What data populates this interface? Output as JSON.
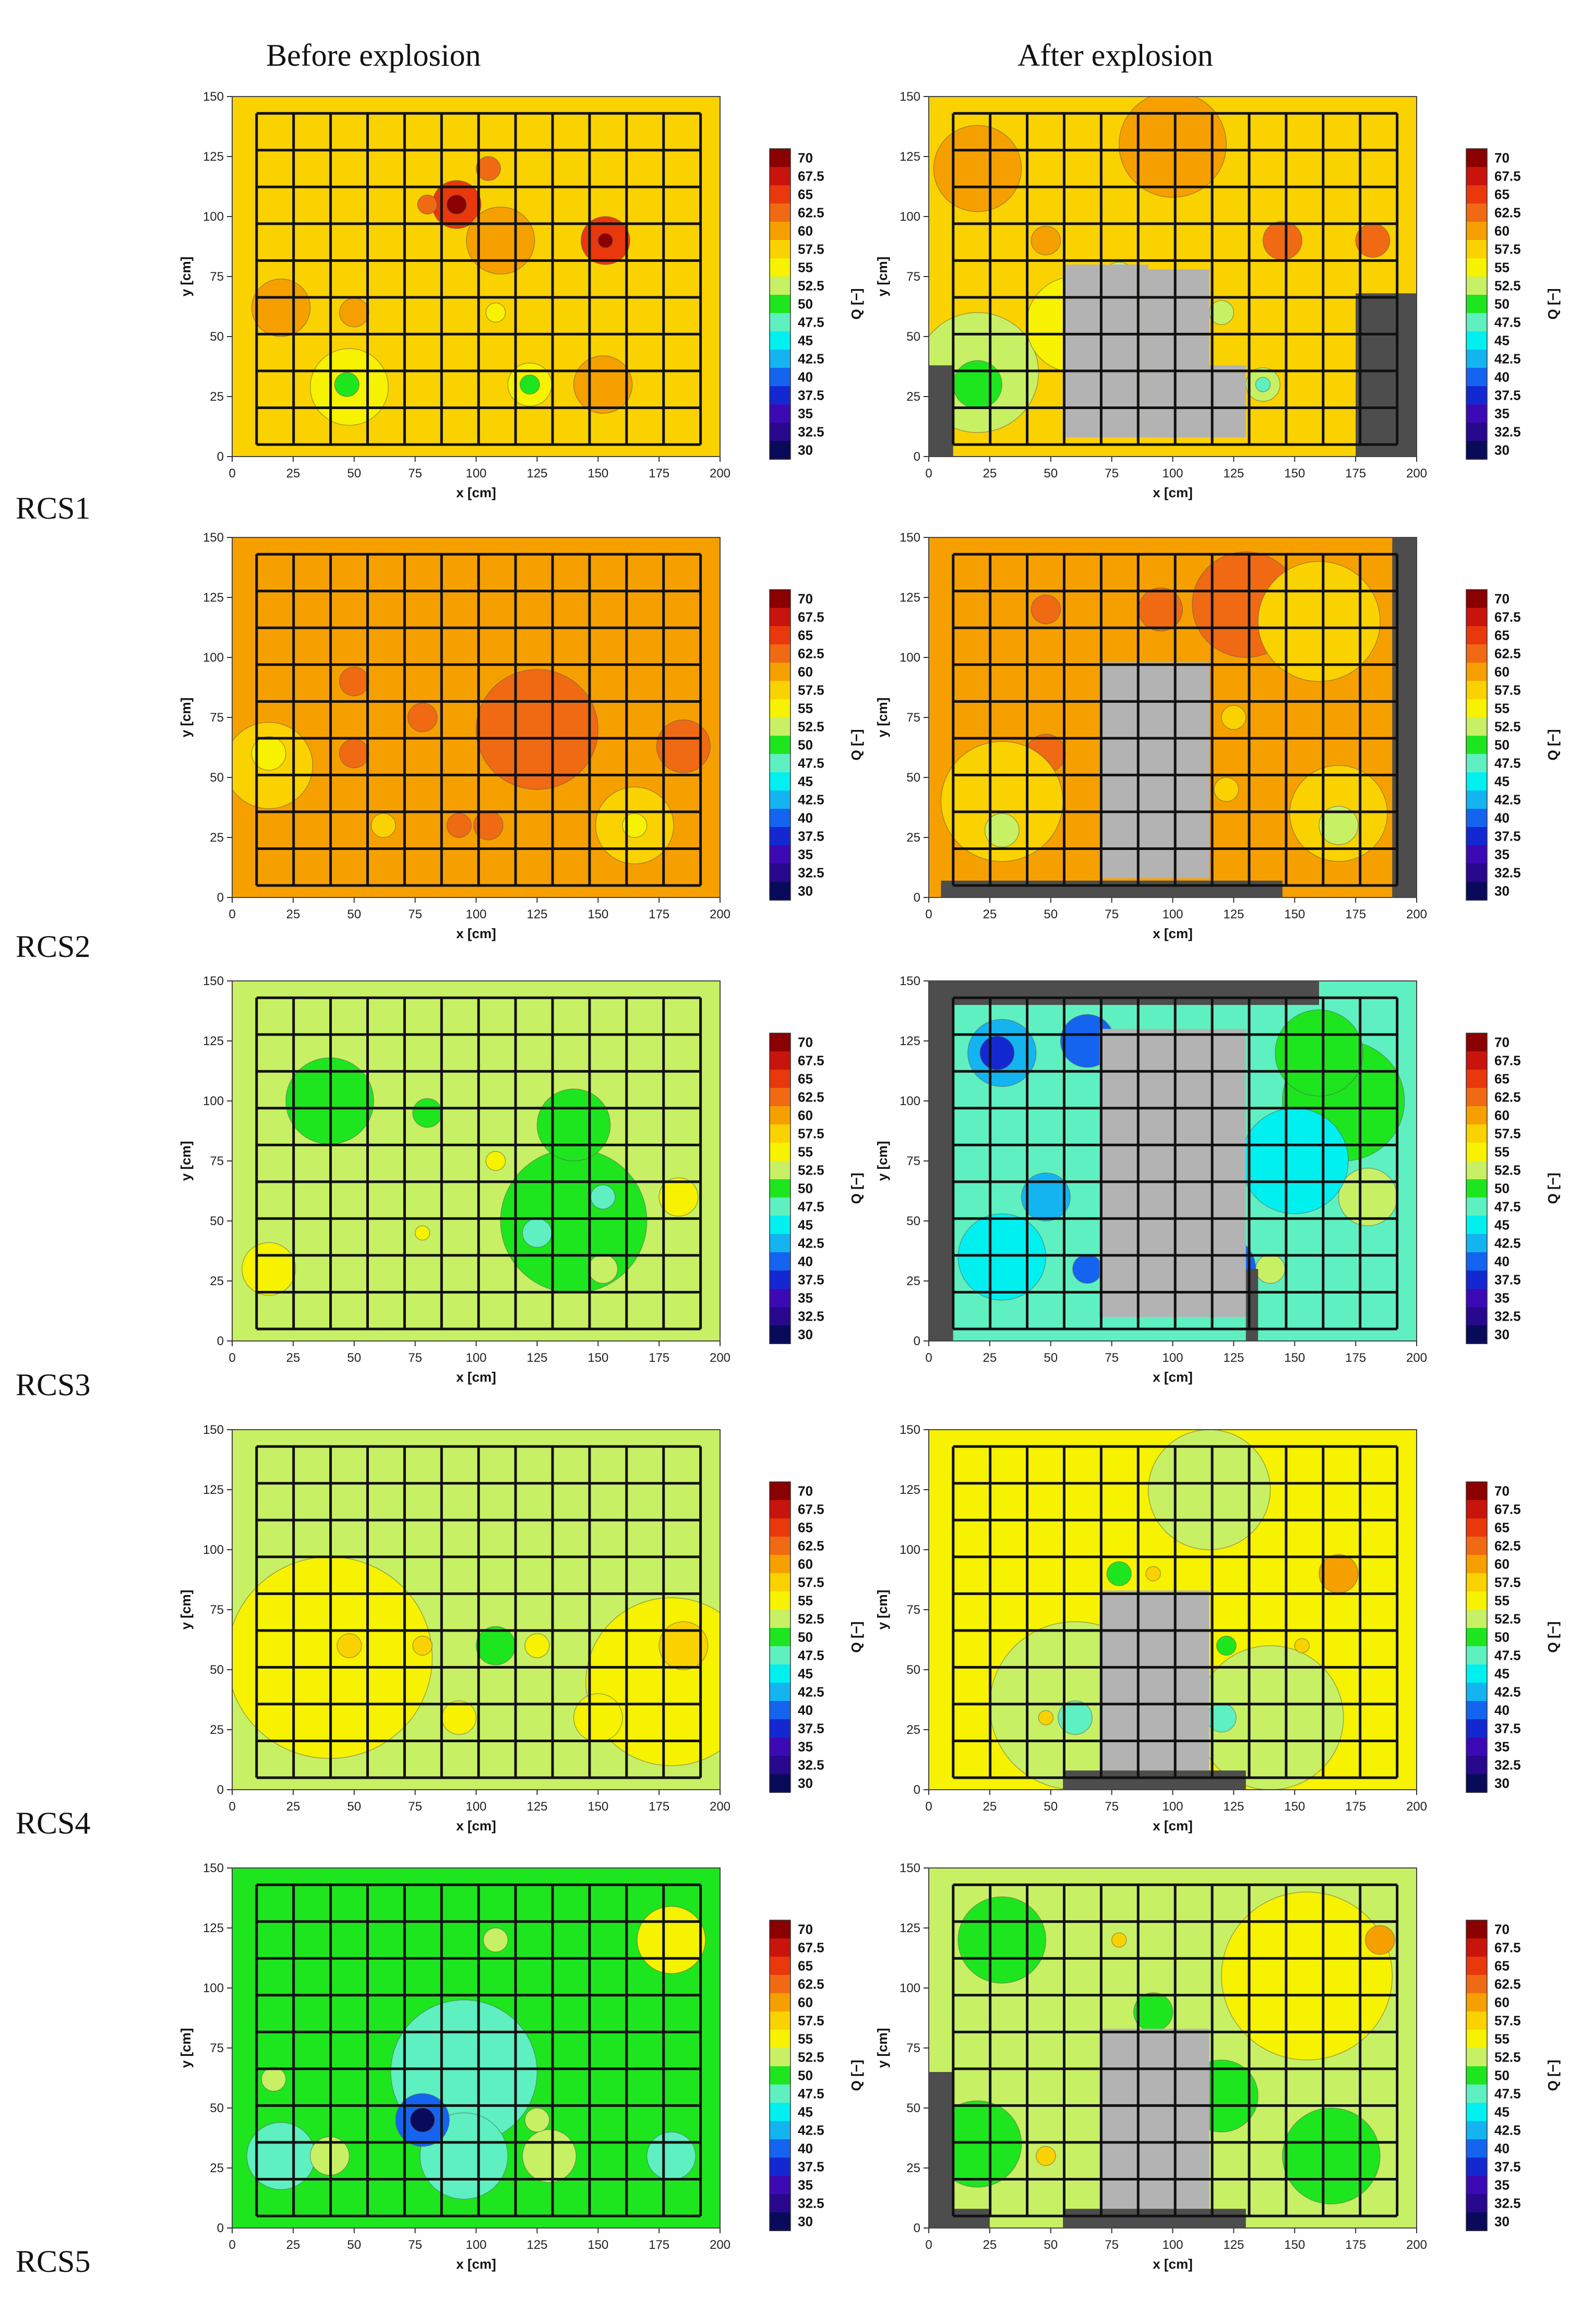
{
  "column_titles": {
    "before": "Before explosion",
    "after": "After explosion"
  },
  "row_labels": [
    "RCS1",
    "RCS2",
    "RCS3",
    "RCS4",
    "RCS5"
  ],
  "colors": {
    "grid_lines": "#111111",
    "removed_area": "#b3b3b3",
    "damaged_area": "#4d4d4d"
  },
  "chart_data": {
    "type": "heatmap",
    "description_level": "contour map of rebound index Q on a reinforced concrete slab grid",
    "axes": {
      "xlabel": "x [cm]",
      "ylabel": "y [cm]",
      "xlim": [
        0,
        200
      ],
      "ylim": [
        0,
        150
      ],
      "x_ticks": [
        0,
        25,
        50,
        75,
        100,
        125,
        150,
        175,
        200
      ],
      "y_ticks": [
        0,
        25,
        50,
        75,
        100,
        125,
        150
      ]
    },
    "colorbar": {
      "label": "Q [−]",
      "ticks": [
        "70",
        "67.5",
        "65",
        "62.5",
        "60",
        "57.5",
        "55",
        "52.5",
        "50",
        "47.5",
        "45",
        "42.5",
        "40",
        "37.5",
        "35",
        "32.5",
        "30"
      ],
      "colors": [
        "#8b0000",
        "#c8140c",
        "#e8380c",
        "#f06a14",
        "#f6a000",
        "#fad200",
        "#f6f200",
        "#c8f064",
        "#1ee61e",
        "#5ef0c0",
        "#00f0f0",
        "#14b4f0",
        "#1464f0",
        "#1428d2",
        "#3c0ab4",
        "#28088c",
        "#0a0a5a"
      ]
    },
    "panels": [
      {
        "id": "rcs1-before",
        "row": "RCS1",
        "state": "Before explosion",
        "background_q": 57.5,
        "blobs": [
          {
            "x": 20,
            "y": 62,
            "r": 12,
            "q": 60
          },
          {
            "x": 92,
            "y": 105,
            "r": 10,
            "q": 65
          },
          {
            "x": 92,
            "y": 105,
            "r": 4,
            "q": 70
          },
          {
            "x": 153,
            "y": 90,
            "r": 10,
            "q": 65
          },
          {
            "x": 153,
            "y": 90,
            "r": 3,
            "q": 70
          },
          {
            "x": 48,
            "y": 29,
            "r": 16,
            "q": 55
          },
          {
            "x": 122,
            "y": 30,
            "r": 9,
            "q": 55
          },
          {
            "x": 47,
            "y": 30,
            "r": 5,
            "q": 50
          },
          {
            "x": 122,
            "y": 30,
            "r": 4,
            "q": 50
          },
          {
            "x": 105,
            "y": 120,
            "r": 5,
            "q": 62.5
          },
          {
            "x": 80,
            "y": 105,
            "r": 4,
            "q": 62.5
          },
          {
            "x": 152,
            "y": 30,
            "r": 12,
            "q": 60
          },
          {
            "x": 110,
            "y": 90,
            "r": 14,
            "q": 60
          },
          {
            "x": 108,
            "y": 60,
            "r": 4,
            "q": 55
          },
          {
            "x": 50,
            "y": 60,
            "r": 6,
            "q": 60
          }
        ]
      },
      {
        "id": "rcs1-after",
        "row": "RCS1",
        "state": "After explosion",
        "background_q": 57.5,
        "blobs": [
          {
            "x": 20,
            "y": 120,
            "r": 18,
            "q": 60
          },
          {
            "x": 100,
            "y": 130,
            "r": 22,
            "q": 60
          },
          {
            "x": 145,
            "y": 90,
            "r": 8,
            "q": 62.5
          },
          {
            "x": 182,
            "y": 90,
            "r": 7,
            "q": 62.5
          },
          {
            "x": 20,
            "y": 35,
            "r": 25,
            "q": 52.5
          },
          {
            "x": 20,
            "y": 30,
            "r": 10,
            "q": 50
          },
          {
            "x": 78,
            "y": 75,
            "r": 6,
            "q": 52.5
          },
          {
            "x": 137,
            "y": 30,
            "r": 7,
            "q": 52.5
          },
          {
            "x": 137,
            "y": 30,
            "r": 3,
            "q": 47.5
          },
          {
            "x": 120,
            "y": 60,
            "r": 5,
            "q": 52.5
          },
          {
            "x": 60,
            "y": 55,
            "r": 20,
            "q": 55
          },
          {
            "x": 48,
            "y": 90,
            "r": 6,
            "q": 60
          }
        ],
        "removed": [
          [
            55,
            8,
            35,
            72
          ],
          [
            90,
            8,
            25,
            70
          ],
          [
            115,
            8,
            15,
            30
          ]
        ],
        "damaged": [
          [
            0,
            0,
            10,
            38
          ],
          [
            175,
            0,
            25,
            68
          ]
        ]
      },
      {
        "id": "rcs2-before",
        "row": "RCS2",
        "state": "Before explosion",
        "background_q": 60,
        "blobs": [
          {
            "x": 125,
            "y": 70,
            "r": 25,
            "q": 62.5
          },
          {
            "x": 185,
            "y": 63,
            "r": 11,
            "q": 62.5
          },
          {
            "x": 50,
            "y": 90,
            "r": 6,
            "q": 62.5
          },
          {
            "x": 50,
            "y": 60,
            "r": 6,
            "q": 62.5
          },
          {
            "x": 78,
            "y": 75,
            "r": 6,
            "q": 62.5
          },
          {
            "x": 93,
            "y": 30,
            "r": 5,
            "q": 62.5
          },
          {
            "x": 105,
            "y": 30,
            "r": 6,
            "q": 62.5
          },
          {
            "x": 15,
            "y": 55,
            "r": 18,
            "q": 57.5
          },
          {
            "x": 15,
            "y": 60,
            "r": 7,
            "q": 55
          },
          {
            "x": 165,
            "y": 30,
            "r": 16,
            "q": 57.5
          },
          {
            "x": 165,
            "y": 30,
            "r": 5,
            "q": 55
          },
          {
            "x": 62,
            "y": 30,
            "r": 5,
            "q": 57.5
          }
        ]
      },
      {
        "id": "rcs2-after",
        "row": "RCS2",
        "state": "After explosion",
        "background_q": 60,
        "blobs": [
          {
            "x": 130,
            "y": 122,
            "r": 22,
            "q": 62.5
          },
          {
            "x": 95,
            "y": 120,
            "r": 9,
            "q": 62.5
          },
          {
            "x": 48,
            "y": 120,
            "r": 6,
            "q": 62.5
          },
          {
            "x": 48,
            "y": 60,
            "r": 8,
            "q": 62.5
          },
          {
            "x": 30,
            "y": 40,
            "r": 25,
            "q": 57.5
          },
          {
            "x": 30,
            "y": 28,
            "r": 7,
            "q": 52.5
          },
          {
            "x": 168,
            "y": 35,
            "r": 20,
            "q": 57.5
          },
          {
            "x": 168,
            "y": 30,
            "r": 8,
            "q": 52.5
          },
          {
            "x": 160,
            "y": 115,
            "r": 25,
            "q": 57.5
          },
          {
            "x": 125,
            "y": 75,
            "r": 5,
            "q": 57.5
          },
          {
            "x": 122,
            "y": 45,
            "r": 5,
            "q": 57.5
          }
        ],
        "removed": [
          [
            70,
            8,
            45,
            90
          ]
        ],
        "damaged": [
          [
            5,
            0,
            140,
            7
          ],
          [
            190,
            0,
            10,
            150
          ]
        ]
      },
      {
        "id": "rcs3-before",
        "row": "RCS3",
        "state": "Before explosion",
        "background_q": 52.5,
        "blobs": [
          {
            "x": 40,
            "y": 100,
            "r": 18,
            "q": 50
          },
          {
            "x": 140,
            "y": 50,
            "r": 30,
            "q": 50
          },
          {
            "x": 140,
            "y": 90,
            "r": 15,
            "q": 50
          },
          {
            "x": 80,
            "y": 95,
            "r": 6,
            "q": 50
          },
          {
            "x": 125,
            "y": 45,
            "r": 6,
            "q": 47.5
          },
          {
            "x": 152,
            "y": 60,
            "r": 5,
            "q": 47.5
          },
          {
            "x": 15,
            "y": 30,
            "r": 11,
            "q": 55
          },
          {
            "x": 183,
            "y": 60,
            "r": 8,
            "q": 55
          },
          {
            "x": 152,
            "y": 30,
            "r": 6,
            "q": 52.5
          },
          {
            "x": 108,
            "y": 75,
            "r": 4,
            "q": 55
          },
          {
            "x": 78,
            "y": 45,
            "r": 3,
            "q": 55
          }
        ]
      },
      {
        "id": "rcs3-after",
        "row": "RCS3",
        "state": "After explosion",
        "background_q": 47.5,
        "blobs": [
          {
            "x": 30,
            "y": 120,
            "r": 14,
            "q": 42.5
          },
          {
            "x": 28,
            "y": 120,
            "r": 7,
            "q": 37.5
          },
          {
            "x": 65,
            "y": 125,
            "r": 11,
            "q": 40
          },
          {
            "x": 48,
            "y": 60,
            "r": 10,
            "q": 42.5
          },
          {
            "x": 65,
            "y": 30,
            "r": 6,
            "q": 40
          },
          {
            "x": 120,
            "y": 30,
            "r": 14,
            "q": 40
          },
          {
            "x": 120,
            "y": 30,
            "r": 6,
            "q": 32.5
          },
          {
            "x": 170,
            "y": 100,
            "r": 25,
            "q": 50
          },
          {
            "x": 180,
            "y": 60,
            "r": 12,
            "q": 52.5
          },
          {
            "x": 160,
            "y": 120,
            "r": 18,
            "q": 50
          },
          {
            "x": 140,
            "y": 30,
            "r": 6,
            "q": 52.5
          },
          {
            "x": 30,
            "y": 35,
            "r": 18,
            "q": 45
          },
          {
            "x": 150,
            "y": 75,
            "r": 22,
            "q": 45
          }
        ],
        "removed": [
          [
            70,
            10,
            60,
            120
          ]
        ],
        "damaged": [
          [
            0,
            0,
            10,
            150
          ],
          [
            0,
            140,
            160,
            10
          ],
          [
            130,
            0,
            5,
            30
          ]
        ]
      },
      {
        "id": "rcs4-before",
        "row": "RCS4",
        "state": "Before explosion",
        "background_q": 52.5,
        "blobs": [
          {
            "x": 40,
            "y": 55,
            "r": 42,
            "q": 55
          },
          {
            "x": 180,
            "y": 45,
            "r": 35,
            "q": 55
          },
          {
            "x": 185,
            "y": 60,
            "r": 10,
            "q": 57.5
          },
          {
            "x": 108,
            "y": 60,
            "r": 8,
            "q": 50
          },
          {
            "x": 48,
            "y": 60,
            "r": 5,
            "q": 57.5
          },
          {
            "x": 78,
            "y": 60,
            "r": 4,
            "q": 57.5
          },
          {
            "x": 125,
            "y": 60,
            "r": 5,
            "q": 55
          },
          {
            "x": 93,
            "y": 30,
            "r": 7,
            "q": 55
          },
          {
            "x": 150,
            "y": 30,
            "r": 10,
            "q": 55
          }
        ]
      },
      {
        "id": "rcs4-after",
        "row": "RCS4",
        "state": "After explosion",
        "background_q": 55,
        "blobs": [
          {
            "x": 115,
            "y": 125,
            "r": 25,
            "q": 52.5
          },
          {
            "x": 60,
            "y": 35,
            "r": 35,
            "q": 52.5
          },
          {
            "x": 140,
            "y": 30,
            "r": 30,
            "q": 52.5
          },
          {
            "x": 60,
            "y": 30,
            "r": 7,
            "q": 47.5
          },
          {
            "x": 120,
            "y": 30,
            "r": 6,
            "q": 47.5
          },
          {
            "x": 78,
            "y": 90,
            "r": 5,
            "q": 50
          },
          {
            "x": 168,
            "y": 90,
            "r": 8,
            "q": 60
          },
          {
            "x": 92,
            "y": 90,
            "r": 3,
            "q": 57.5
          },
          {
            "x": 122,
            "y": 60,
            "r": 4,
            "q": 50
          },
          {
            "x": 153,
            "y": 60,
            "r": 3,
            "q": 57.5
          },
          {
            "x": 48,
            "y": 30,
            "r": 3,
            "q": 57.5
          }
        ],
        "removed": [
          [
            70,
            8,
            45,
            75
          ]
        ],
        "damaged": [
          [
            55,
            0,
            75,
            8
          ]
        ]
      },
      {
        "id": "rcs5-before",
        "row": "RCS5",
        "state": "Before explosion",
        "background_q": 50,
        "blobs": [
          {
            "x": 95,
            "y": 65,
            "r": 30,
            "q": 47.5
          },
          {
            "x": 95,
            "y": 30,
            "r": 18,
            "q": 47.5
          },
          {
            "x": 20,
            "y": 30,
            "r": 14,
            "q": 47.5
          },
          {
            "x": 180,
            "y": 30,
            "r": 10,
            "q": 47.5
          },
          {
            "x": 78,
            "y": 45,
            "r": 11,
            "q": 40
          },
          {
            "x": 78,
            "y": 45,
            "r": 5,
            "q": 30
          },
          {
            "x": 180,
            "y": 120,
            "r": 14,
            "q": 55
          },
          {
            "x": 40,
            "y": 30,
            "r": 8,
            "q": 52.5
          },
          {
            "x": 130,
            "y": 30,
            "r": 11,
            "q": 52.5
          },
          {
            "x": 125,
            "y": 45,
            "r": 5,
            "q": 52.5
          },
          {
            "x": 17,
            "y": 62,
            "r": 5,
            "q": 52.5
          },
          {
            "x": 108,
            "y": 120,
            "r": 5,
            "q": 52.5
          }
        ]
      },
      {
        "id": "rcs5-after",
        "row": "RCS5",
        "state": "After explosion",
        "background_q": 52.5,
        "blobs": [
          {
            "x": 155,
            "y": 105,
            "r": 35,
            "q": 55
          },
          {
            "x": 30,
            "y": 120,
            "r": 18,
            "q": 50
          },
          {
            "x": 20,
            "y": 35,
            "r": 18,
            "q": 50
          },
          {
            "x": 165,
            "y": 30,
            "r": 20,
            "q": 50
          },
          {
            "x": 92,
            "y": 90,
            "r": 8,
            "q": 50
          },
          {
            "x": 120,
            "y": 55,
            "r": 15,
            "q": 50
          },
          {
            "x": 185,
            "y": 120,
            "r": 6,
            "q": 60
          },
          {
            "x": 48,
            "y": 30,
            "r": 4,
            "q": 57.5
          },
          {
            "x": 78,
            "y": 120,
            "r": 3,
            "q": 57.5
          }
        ],
        "removed": [
          [
            70,
            8,
            45,
            75
          ]
        ],
        "damaged": [
          [
            0,
            0,
            10,
            65
          ],
          [
            0,
            0,
            25,
            8
          ],
          [
            55,
            0,
            75,
            8
          ]
        ]
      }
    ]
  }
}
